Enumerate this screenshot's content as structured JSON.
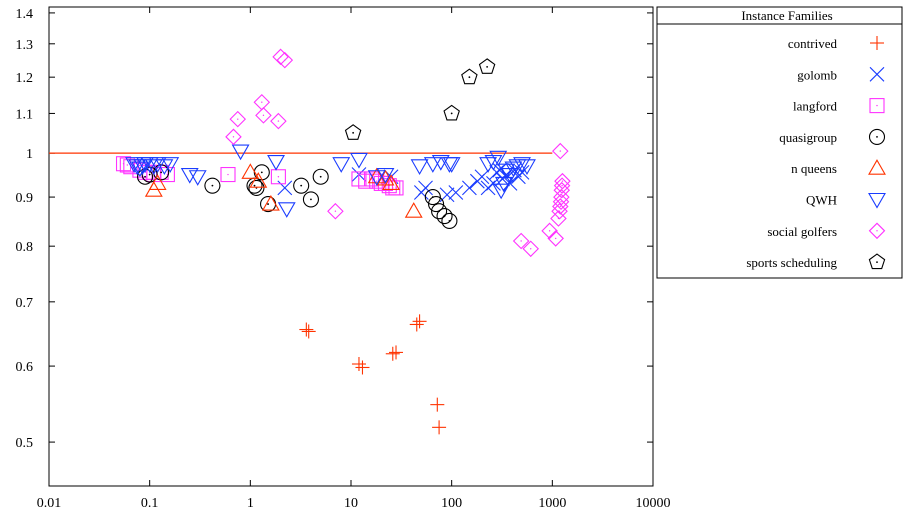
{
  "chart_data": {
    "type": "scatter",
    "title": "",
    "xlabel": "",
    "ylabel": "",
    "xscale": "log",
    "yscale": "log",
    "xlim": [
      0.01,
      10000
    ],
    "ylim": [
      0.45,
      1.42
    ],
    "xticks": [
      {
        "value": 0.01,
        "label": "0.01"
      },
      {
        "value": 0.1,
        "label": "0.1"
      },
      {
        "value": 1,
        "label": "1"
      },
      {
        "value": 10,
        "label": "10"
      },
      {
        "value": 100,
        "label": "100"
      },
      {
        "value": 1000,
        "label": "1000"
      },
      {
        "value": 10000,
        "label": "10000"
      }
    ],
    "yticks": [
      {
        "value": 0.5,
        "label": "0.5"
      },
      {
        "value": 0.6,
        "label": "0.6"
      },
      {
        "value": 0.7,
        "label": "0.7"
      },
      {
        "value": 0.8,
        "label": "0.8"
      },
      {
        "value": 0.9,
        "label": "0.9"
      },
      {
        "value": 1.0,
        "label": "1"
      },
      {
        "value": 1.1,
        "label": "1.1"
      },
      {
        "value": 1.2,
        "label": "1.2"
      },
      {
        "value": 1.3,
        "label": "1.3"
      },
      {
        "value": 1.4,
        "label": "1.4"
      }
    ],
    "reference_line": {
      "y": 1.0,
      "x_from": 0.01,
      "x_to": 1000,
      "color": "#ff3300"
    },
    "grid": false,
    "legend": {
      "title": "Instance Families",
      "placement": "right"
    },
    "series": [
      {
        "name": "contrived",
        "marker": "plus",
        "color": "#ff3300",
        "points": [
          [
            3.6,
            0.655
          ],
          [
            3.8,
            0.652
          ],
          [
            12,
            0.603
          ],
          [
            13,
            0.598
          ],
          [
            26,
            0.618
          ],
          [
            28,
            0.62
          ],
          [
            45,
            0.663
          ],
          [
            48,
            0.668
          ],
          [
            72,
            0.547
          ],
          [
            75,
            0.518
          ]
        ]
      },
      {
        "name": "golomb",
        "marker": "cross",
        "color": "#1a3cff",
        "points": [
          [
            2.2,
            0.92
          ],
          [
            12,
            0.95
          ],
          [
            25,
            0.945
          ],
          [
            50,
            0.91
          ],
          [
            55,
            0.92
          ],
          [
            90,
            0.905
          ],
          [
            110,
            0.91
          ],
          [
            150,
            0.92
          ],
          [
            180,
            0.935
          ],
          [
            200,
            0.945
          ],
          [
            230,
            0.92
          ],
          [
            260,
            0.93
          ],
          [
            280,
            0.955
          ],
          [
            300,
            0.96
          ],
          [
            320,
            0.94
          ],
          [
            350,
            0.95
          ],
          [
            380,
            0.93
          ],
          [
            420,
            0.96
          ],
          [
            460,
            0.945
          ],
          [
            500,
            0.955
          ]
        ]
      },
      {
        "name": "langford",
        "marker": "square",
        "color": "#ff33ff",
        "points": [
          [
            0.055,
            0.975
          ],
          [
            0.06,
            0.972
          ],
          [
            0.065,
            0.968
          ],
          [
            0.08,
            0.96
          ],
          [
            0.09,
            0.955
          ],
          [
            0.1,
            0.955
          ],
          [
            0.11,
            0.95
          ],
          [
            0.13,
            0.955
          ],
          [
            0.15,
            0.95
          ],
          [
            0.6,
            0.95
          ],
          [
            1.9,
            0.945
          ],
          [
            12,
            0.94
          ],
          [
            14,
            0.935
          ],
          [
            16,
            0.94
          ],
          [
            18,
            0.935
          ],
          [
            20,
            0.93
          ],
          [
            22,
            0.93
          ],
          [
            24,
            0.925
          ],
          [
            26,
            0.92
          ],
          [
            28,
            0.92
          ]
        ]
      },
      {
        "name": "quasigroup",
        "marker": "circle-dot",
        "color": "#000000",
        "points": [
          [
            0.09,
            0.945
          ],
          [
            0.1,
            0.95
          ],
          [
            0.13,
            0.955
          ],
          [
            0.42,
            0.925
          ],
          [
            1.1,
            0.925
          ],
          [
            1.15,
            0.92
          ],
          [
            1.3,
            0.955
          ],
          [
            1.5,
            0.885
          ],
          [
            3.2,
            0.925
          ],
          [
            4,
            0.895
          ],
          [
            5,
            0.945
          ],
          [
            65,
            0.9
          ],
          [
            70,
            0.885
          ],
          [
            75,
            0.87
          ],
          [
            85,
            0.86
          ],
          [
            95,
            0.85
          ]
        ]
      },
      {
        "name": "n queens",
        "marker": "triangle-up",
        "color": "#ff3300",
        "points": [
          [
            0.11,
            0.915
          ],
          [
            0.12,
            0.93
          ],
          [
            1.0,
            0.955
          ],
          [
            1.2,
            0.935
          ],
          [
            1.6,
            0.885
          ],
          [
            18,
            0.945
          ],
          [
            22,
            0.94
          ],
          [
            25,
            0.93
          ],
          [
            42,
            0.87
          ]
        ]
      },
      {
        "name": "QWH",
        "marker": "triangle-down",
        "color": "#1a3cff",
        "points": [
          [
            0.07,
            0.975
          ],
          [
            0.075,
            0.97
          ],
          [
            0.08,
            0.965
          ],
          [
            0.085,
            0.97
          ],
          [
            0.09,
            0.975
          ],
          [
            0.1,
            0.975
          ],
          [
            0.11,
            0.97
          ],
          [
            0.12,
            0.975
          ],
          [
            0.14,
            0.97
          ],
          [
            0.16,
            0.975
          ],
          [
            0.25,
            0.95
          ],
          [
            0.3,
            0.945
          ],
          [
            0.8,
            1.005
          ],
          [
            1.8,
            0.98
          ],
          [
            2.3,
            0.875
          ],
          [
            8,
            0.975
          ],
          [
            12,
            0.985
          ],
          [
            18,
            0.945
          ],
          [
            22,
            0.95
          ],
          [
            48,
            0.97
          ],
          [
            65,
            0.975
          ],
          [
            78,
            0.98
          ],
          [
            95,
            0.975
          ],
          [
            100,
            0.975
          ],
          [
            230,
            0.975
          ],
          [
            260,
            0.98
          ],
          [
            290,
            0.99
          ],
          [
            310,
            0.915
          ],
          [
            330,
            0.93
          ],
          [
            350,
            0.96
          ],
          [
            380,
            0.95
          ],
          [
            410,
            0.965
          ],
          [
            450,
            0.97
          ],
          [
            500,
            0.975
          ],
          [
            560,
            0.97
          ]
        ]
      },
      {
        "name": "social golfers",
        "marker": "diamond",
        "color": "#ff33ff",
        "points": [
          [
            0.68,
            1.04
          ],
          [
            0.75,
            1.085
          ],
          [
            1.3,
            1.13
          ],
          [
            1.35,
            1.095
          ],
          [
            1.9,
            1.08
          ],
          [
            2.0,
            1.26
          ],
          [
            2.2,
            1.25
          ],
          [
            7,
            0.87
          ],
          [
            490,
            0.81
          ],
          [
            610,
            0.795
          ],
          [
            940,
            0.83
          ],
          [
            1080,
            0.815
          ],
          [
            1150,
            0.855
          ],
          [
            1180,
            0.87
          ],
          [
            1200,
            0.88
          ],
          [
            1220,
            0.89
          ],
          [
            1230,
            0.9
          ],
          [
            1240,
            0.915
          ],
          [
            1250,
            0.925
          ],
          [
            1260,
            0.935
          ],
          [
            1200,
            1.005
          ]
        ]
      },
      {
        "name": "sports scheduling",
        "marker": "pentagon",
        "color": "#000000",
        "points": [
          [
            10.5,
            1.05
          ],
          [
            100,
            1.1
          ],
          [
            150,
            1.2
          ],
          [
            225,
            1.23
          ]
        ]
      }
    ]
  }
}
